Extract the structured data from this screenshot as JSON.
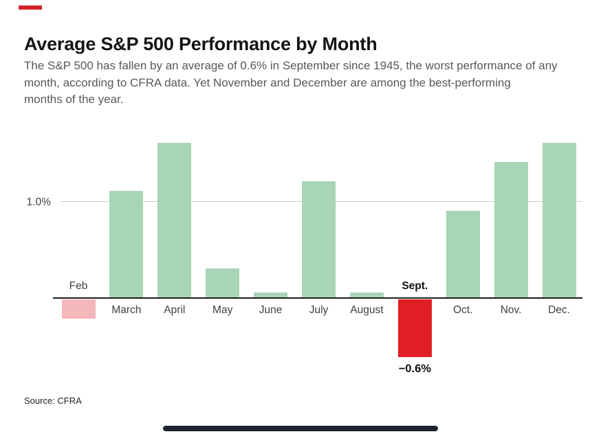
{
  "header": {
    "title": "Average S&P 500 Performance by Month",
    "subtitle_lines": [
      "The S&P 500 has fallen by an average of 0.6% in September since 1945, the worst performance of any",
      "month, according to CFRA data. Yet November and December are among the best-performing",
      "months of the year."
    ]
  },
  "footer": {
    "source": "Source: CFRA"
  },
  "colors": {
    "positive_bar": "#a8d5b5",
    "feb_bar": "#f3b6ba",
    "sept_bar": "#e11e23",
    "accent_mark": "#d6212b",
    "gridline": "#cccccc",
    "axis": "#1d1d1d",
    "home_indicator": "#1c232e"
  },
  "chart_data": {
    "type": "bar",
    "title": "Average S&P 500 Performance by Month",
    "xlabel": "",
    "ylabel": "",
    "unit": "%",
    "categories": [
      "Feb",
      "March",
      "April",
      "May",
      "June",
      "July",
      "August",
      "Sept.",
      "Oct.",
      "Nov.",
      "Dec."
    ],
    "values": [
      -0.2,
      1.1,
      1.6,
      0.3,
      0.05,
      1.2,
      0.05,
      -0.6,
      0.9,
      1.4,
      1.6
    ],
    "ylim": [
      -0.8,
      1.75
    ],
    "ytick_values": [
      1.0
    ],
    "ytick_labels": [
      "1.0%"
    ],
    "grid": "single horizontal gridline at 1.0%",
    "legend_position": "none",
    "bar_color_rules": {
      "positive": "#a8d5b5",
      "Feb": "#f3b6ba",
      "Sept.": "#e11e23"
    },
    "label_positions": {
      "Feb": "above-axis",
      "Sept.": "above-axis"
    },
    "bold_labels": [
      "Sept."
    ],
    "annotations": [
      {
        "target": "Sept.",
        "text": "−0.6%",
        "position": "below-bar",
        "bold": true
      }
    ]
  }
}
